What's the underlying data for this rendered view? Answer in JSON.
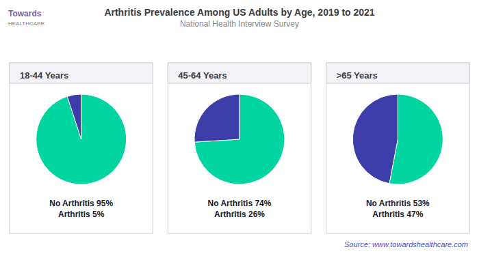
{
  "title": "Arthritis Prevalence Among US Adults by Age, 2019 to 2021",
  "subtitle": "National Health Interview Survey",
  "annotations": [
    "Towards",
    "HEALTHCARE",
    "Source: www.towardshealthcare.com"
  ],
  "chart_data": [
    {
      "type": "pie",
      "title": "18-44 Years",
      "categories": [
        "No Arthritis",
        "Arthritis"
      ],
      "values": [
        95,
        5
      ],
      "colors": [
        "#00D4A0",
        "#3D3DAA"
      ],
      "annotations": [
        "No Arthritis 95%\nArthritis 5%"
      ]
    },
    {
      "type": "pie",
      "title": "45-64 Years",
      "categories": [
        "No Arthritis",
        "Arthritis"
      ],
      "values": [
        74,
        26
      ],
      "colors": [
        "#00D4A0",
        "#3D3DAA"
      ],
      "annotations": [
        "No Arthritis 74%\nArthritis 26%"
      ]
    },
    {
      "type": "pie",
      "title": ">65 Years",
      "categories": [
        "No Arthritis",
        "Arthritis"
      ],
      "values": [
        53,
        47
      ],
      "colors": [
        "#00D4A0",
        "#3D3DAA"
      ],
      "annotations": [
        "No Arthritis 53%\nArthritis 47%"
      ]
    }
  ]
}
